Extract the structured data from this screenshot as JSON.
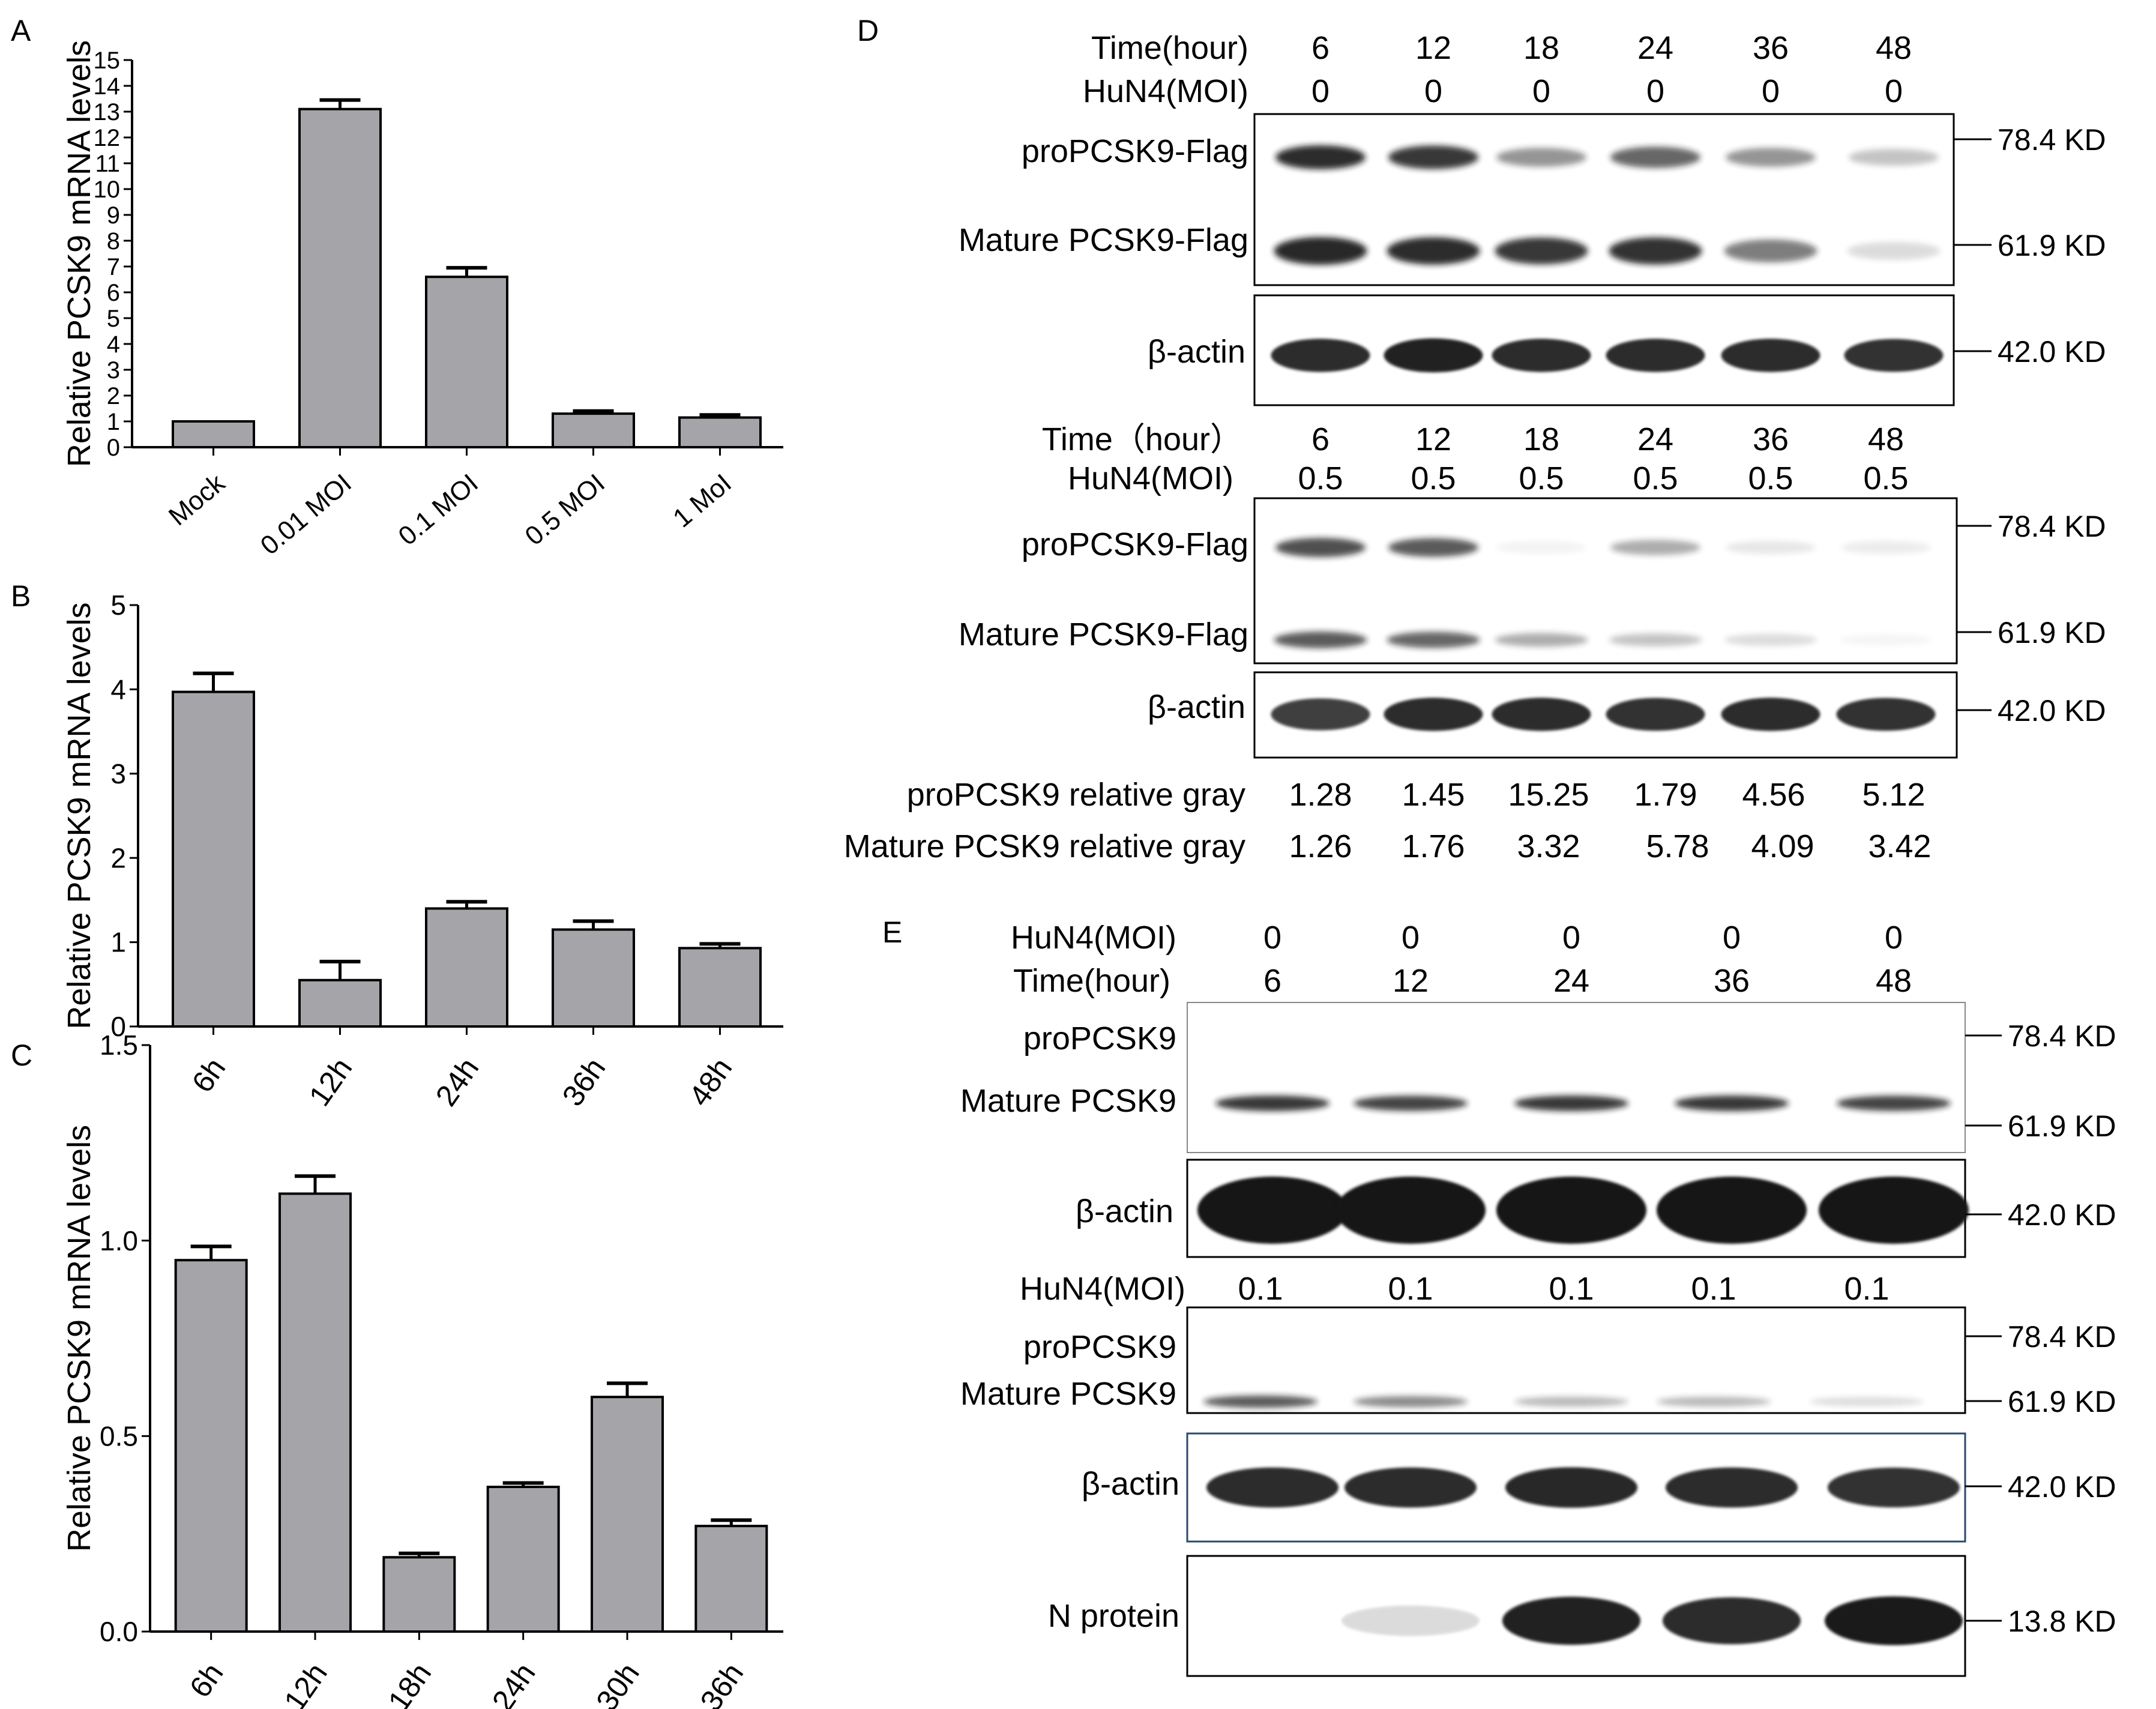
{
  "colors": {
    "bar": "#a4a4a9",
    "band": "#141414",
    "axis": "#000000"
  },
  "panels": {
    "A": {
      "letter": "A"
    },
    "B": {
      "letter": "B"
    },
    "C": {
      "letter": "C"
    },
    "D": {
      "letter": "D"
    },
    "E": {
      "letter": "E"
    }
  },
  "chart_data": [
    {
      "panel": "A",
      "type": "bar",
      "ylabel": "Relative PCSK9 mRNA levels",
      "xlabel": "",
      "categories": [
        "Mock",
        "0.01 MOI",
        "0.1 MOI",
        "0.5 MOI",
        "1 MoI"
      ],
      "values": [
        1.0,
        13.1,
        6.6,
        1.3,
        1.15
      ],
      "errors": [
        0.0,
        0.35,
        0.35,
        0.1,
        0.1
      ],
      "ylim": [
        0,
        15
      ],
      "yticks": [
        "0",
        "1",
        "2",
        "3",
        "4",
        "5",
        "6",
        "7",
        "8",
        "9",
        "10",
        "11",
        "12",
        "13",
        "14",
        "15"
      ]
    },
    {
      "panel": "B",
      "type": "bar",
      "ylabel": "Relative PCSK9 mRNA levels",
      "xlabel": "",
      "categories": [
        "6h",
        "12h",
        "24h",
        "36h",
        "48h"
      ],
      "values": [
        3.97,
        0.55,
        1.4,
        1.15,
        0.93
      ],
      "errors": [
        0.22,
        0.22,
        0.08,
        0.1,
        0.05
      ],
      "ylim": [
        0,
        5
      ],
      "yticks": [
        "0",
        "1",
        "2",
        "3",
        "4",
        "5"
      ]
    },
    {
      "panel": "C",
      "type": "bar",
      "ylabel": "Relative PCSK9 mRNA levels",
      "xlabel": "",
      "categories": [
        "6h",
        "12h",
        "18h",
        "24h",
        "30h",
        "36h"
      ],
      "values": [
        0.95,
        1.12,
        0.19,
        0.37,
        0.6,
        0.27
      ],
      "errors": [
        0.035,
        0.045,
        0.01,
        0.01,
        0.035,
        0.015
      ],
      "ylim": [
        0,
        1.5
      ],
      "yticks": [
        "0.0",
        "0.5",
        "1.0",
        "1.5"
      ]
    }
  ],
  "blotD": {
    "header1": {
      "time_label": "Time(hour)",
      "moi_label": "HuN4(MOI)",
      "times": [
        "6",
        "12",
        "18",
        "24",
        "36",
        "48"
      ],
      "mois": [
        "0",
        "0",
        "0",
        "0",
        "0",
        "0"
      ]
    },
    "header2": {
      "time_label": "Time（hour）",
      "moi_label": "HuN4(MOI)",
      "times": [
        "6",
        "12",
        "18",
        "24",
        "36",
        "48"
      ],
      "mois": [
        "0.5",
        "0.5",
        "0.5",
        "0.5",
        "0.5",
        "0.5"
      ]
    },
    "labels": {
      "pro": "proPCSK9-Flag",
      "mature": "Mature PCSK9-Flag",
      "actin": "β-actin"
    },
    "markers": {
      "m78": "78.4 KD",
      "m62": "61.9 KD",
      "m42": "42.0 KD"
    },
    "intensities": {
      "pro0": [
        0.9,
        0.85,
        0.45,
        0.65,
        0.45,
        0.25
      ],
      "mat0": [
        0.92,
        0.9,
        0.85,
        0.88,
        0.55,
        0.15
      ],
      "act0": [
        0.9,
        0.95,
        0.9,
        0.9,
        0.9,
        0.88
      ],
      "pro5": [
        0.75,
        0.7,
        0.05,
        0.35,
        0.1,
        0.08
      ],
      "mat5": [
        0.7,
        0.65,
        0.35,
        0.25,
        0.15,
        0.04
      ],
      "act5": [
        0.82,
        0.9,
        0.9,
        0.88,
        0.9,
        0.88
      ]
    },
    "quant": {
      "pro_label": "proPCSK9 relative gray",
      "pro_values": [
        "1.28",
        "1.45",
        "15.25",
        "1.79",
        "4.56",
        "5.12"
      ],
      "mature_label": "Mature PCSK9 relative gray",
      "mature_values": [
        "1.26",
        "1.76",
        "3.32",
        "5.78",
        "4.09",
        "3.42"
      ]
    }
  },
  "blotE": {
    "header1": {
      "moi_label": "HuN4(MOI)",
      "time_label": "Time(hour)",
      "mois": [
        "0",
        "0",
        "0",
        "0",
        "0"
      ],
      "times": [
        "6",
        "12",
        "24",
        "36",
        "48"
      ]
    },
    "header2": {
      "moi_label": "HuN4(MOI)",
      "mois": [
        "0.1",
        "0.1",
        "0.1",
        "0.1",
        "0.1"
      ]
    },
    "labels": {
      "pro": "proPCSK9",
      "mature": "Mature PCSK9",
      "actin": "β-actin",
      "n": "N protein"
    },
    "markers": {
      "m78": "78.4 KD",
      "m62": "61.9 KD",
      "m42": "42.0 KD",
      "m13": "13.8 KD"
    },
    "intensities": {
      "mat0": [
        0.85,
        0.8,
        0.85,
        0.85,
        0.8
      ],
      "act0": [
        1.0,
        1.0,
        1.0,
        1.0,
        1.0
      ],
      "mat1": [
        0.7,
        0.5,
        0.3,
        0.3,
        0.15
      ],
      "act1": [
        0.9,
        0.9,
        0.92,
        0.9,
        0.88
      ],
      "nprot": [
        0.0,
        0.15,
        0.95,
        0.9,
        0.98
      ]
    }
  }
}
